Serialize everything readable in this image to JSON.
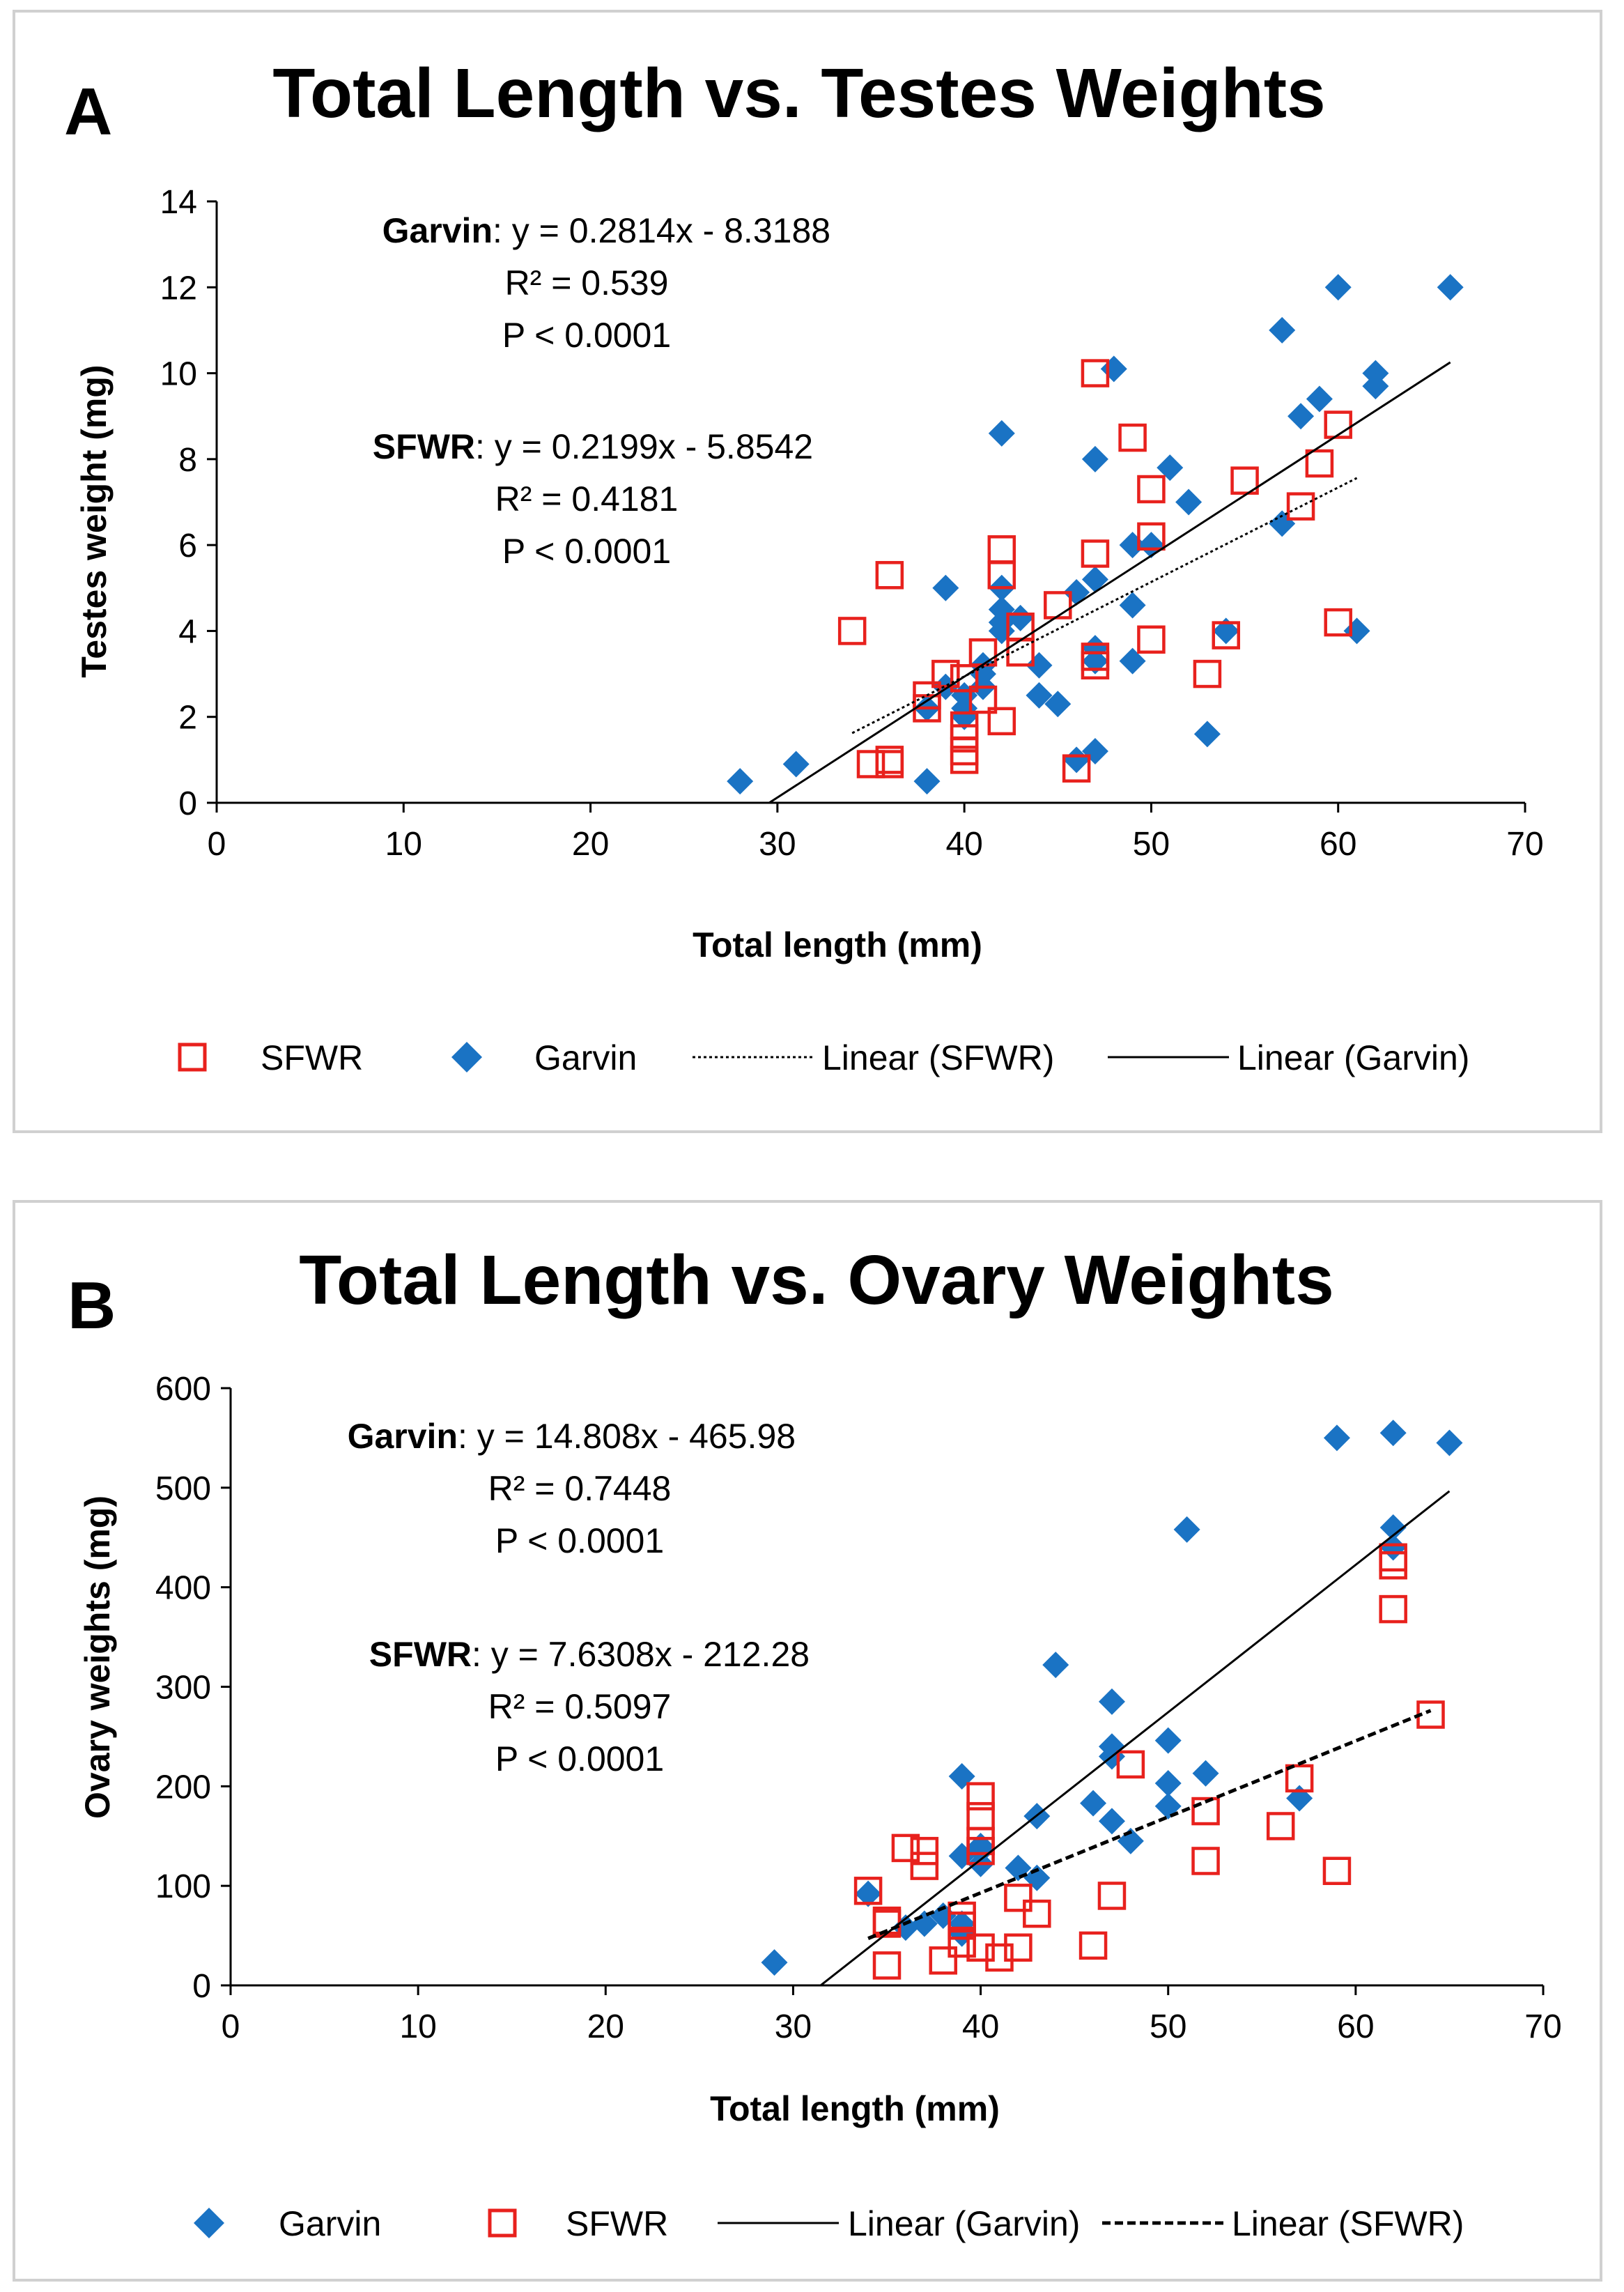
{
  "chart_data": [
    {
      "type": "scatter",
      "panel_label": "A",
      "title": "Total Length vs. Testes Weights",
      "xlabel": "Total length (mm)",
      "ylabel": "Testes weight (mg)",
      "xlim": [
        0,
        70
      ],
      "ylim": [
        0,
        14
      ],
      "xticks": [
        0,
        10,
        20,
        30,
        40,
        50,
        60,
        70
      ],
      "yticks": [
        0,
        2,
        4,
        6,
        8,
        10,
        12,
        14
      ],
      "grid": false,
      "legend": "bottom",
      "legend_entries": [
        {
          "label": "SFWR",
          "kind": "sfwr-marker"
        },
        {
          "label": "Garvin",
          "kind": "garvin-marker"
        },
        {
          "label": "Linear (SFWR)",
          "kind": "dotted-line"
        },
        {
          "label": "Linear (Garvin)",
          "kind": "solid-line"
        }
      ],
      "annotations": [
        {
          "site": "Garvin",
          "equation": ": y = 0.2814x - 8.3188",
          "r2": "R² = 0.539",
          "p": "P < 0.0001"
        },
        {
          "site": "SFWR",
          "equation": ": y = 0.2199x - 5.8542",
          "r2": "R² = 0.4181",
          "p": "P < 0.0001"
        }
      ],
      "series": [
        {
          "name": "Garvin",
          "marker": "diamond",
          "color": "#1a73c4",
          "points": [
            [
              28,
              0.5
            ],
            [
              31,
              0.9
            ],
            [
              38,
              0.5
            ],
            [
              38,
              2.2
            ],
            [
              39,
              5.0
            ],
            [
              39,
              2.7
            ],
            [
              40,
              2.0
            ],
            [
              40,
              2.5
            ],
            [
              40,
              2.2
            ],
            [
              41,
              2.7
            ],
            [
              41,
              3.0
            ],
            [
              41,
              3.2
            ],
            [
              42,
              8.6
            ],
            [
              42,
              5.0
            ],
            [
              42,
              4.5
            ],
            [
              42,
              4.2
            ],
            [
              42,
              4.0
            ],
            [
              43,
              4.3
            ],
            [
              44,
              3.2
            ],
            [
              44,
              2.5
            ],
            [
              45,
              2.3
            ],
            [
              46,
              1.0
            ],
            [
              46,
              4.9
            ],
            [
              47,
              5.2
            ],
            [
              47,
              3.6
            ],
            [
              47,
              3.3
            ],
            [
              47,
              1.2
            ],
            [
              47,
              8.0
            ],
            [
              48,
              10.1
            ],
            [
              49,
              6.0
            ],
            [
              49,
              4.6
            ],
            [
              49,
              3.3
            ],
            [
              50,
              6.0
            ],
            [
              51,
              7.8
            ],
            [
              52,
              7.0
            ],
            [
              53,
              1.6
            ],
            [
              54,
              4.0
            ],
            [
              57,
              11.0
            ],
            [
              57,
              6.5
            ],
            [
              58,
              9.0
            ],
            [
              59,
              9.4
            ],
            [
              60,
              12.0
            ],
            [
              61,
              4.0
            ],
            [
              62,
              10.0
            ],
            [
              62,
              9.7
            ],
            [
              66,
              12.0
            ]
          ]
        },
        {
          "name": "SFWR",
          "marker": "square",
          "color": "#e8211d",
          "points": [
            [
              34,
              4.0
            ],
            [
              35,
              0.9
            ],
            [
              36,
              5.3
            ],
            [
              36,
              1.0
            ],
            [
              36,
              0.9
            ],
            [
              38,
              2.5
            ],
            [
              38,
              2.2
            ],
            [
              39,
              3.0
            ],
            [
              40,
              2.9
            ],
            [
              40,
              1.8
            ],
            [
              40,
              1.5
            ],
            [
              40,
              1.2
            ],
            [
              40,
              1.0
            ],
            [
              41,
              3.5
            ],
            [
              41,
              2.4
            ],
            [
              42,
              5.9
            ],
            [
              42,
              5.3
            ],
            [
              42,
              1.9
            ],
            [
              43,
              3.5
            ],
            [
              43,
              4.1
            ],
            [
              45,
              4.6
            ],
            [
              46,
              0.8
            ],
            [
              47,
              10.0
            ],
            [
              47,
              5.8
            ],
            [
              47,
              3.4
            ],
            [
              47,
              3.2
            ],
            [
              49,
              8.5
            ],
            [
              50,
              7.3
            ],
            [
              50,
              6.2
            ],
            [
              50,
              3.8
            ],
            [
              53,
              3.0
            ],
            [
              54,
              3.9
            ],
            [
              55,
              7.5
            ],
            [
              58,
              6.9
            ],
            [
              59,
              7.9
            ],
            [
              60,
              8.8
            ],
            [
              60,
              4.2
            ]
          ]
        }
      ],
      "trendlines": [
        {
          "name": "Linear (SFWR)",
          "slope": 0.2199,
          "intercept": -5.8542,
          "x_range": [
            34,
            61
          ],
          "style": "dotted"
        },
        {
          "name": "Linear (Garvin)",
          "slope": 0.2814,
          "intercept": -8.3188,
          "x_range": [
            29.56,
            66
          ],
          "style": "solid"
        }
      ]
    },
    {
      "type": "scatter",
      "panel_label": "B",
      "title": "Total Length vs. Ovary Weights",
      "xlabel": "Total length (mm)",
      "ylabel": "Ovary weights (mg)",
      "xlim": [
        0,
        70
      ],
      "ylim": [
        0,
        600
      ],
      "xticks": [
        0,
        10,
        20,
        30,
        40,
        50,
        60,
        70
      ],
      "yticks": [
        0,
        100,
        200,
        300,
        400,
        500,
        600
      ],
      "grid": false,
      "legend": "bottom",
      "legend_entries": [
        {
          "label": "Garvin",
          "kind": "garvin-marker"
        },
        {
          "label": "SFWR",
          "kind": "sfwr-marker"
        },
        {
          "label": "Linear (Garvin)",
          "kind": "solid-line"
        },
        {
          "label": "Linear (SFWR)",
          "kind": "dashed-line"
        }
      ],
      "annotations": [
        {
          "site": "Garvin",
          "equation": ": y = 14.808x - 465.98",
          "r2": "R² = 0.7448",
          "p": "P < 0.0001"
        },
        {
          "site": "SFWR",
          "equation": ": y = 7.6308x - 212.28",
          "r2": "R² = 0.5097",
          "p": "P < 0.0001"
        }
      ],
      "series": [
        {
          "name": "Garvin",
          "marker": "diamond",
          "color": "#1a73c4",
          "points": [
            [
              29,
              23
            ],
            [
              34,
              92
            ],
            [
              36,
              58
            ],
            [
              37,
              62
            ],
            [
              38,
              70
            ],
            [
              39,
              210
            ],
            [
              39,
              130
            ],
            [
              39,
              62
            ],
            [
              39,
              52
            ],
            [
              40,
              140
            ],
            [
              40,
              135
            ],
            [
              40,
              122
            ],
            [
              42,
              118
            ],
            [
              43,
              170
            ],
            [
              43,
              108
            ],
            [
              44,
              322
            ],
            [
              46,
              183
            ],
            [
              47,
              285
            ],
            [
              47,
              240
            ],
            [
              47,
              230
            ],
            [
              47,
              165
            ],
            [
              48,
              145
            ],
            [
              50,
              246
            ],
            [
              50,
              203
            ],
            [
              50,
              180
            ],
            [
              51,
              458
            ],
            [
              52,
              213
            ],
            [
              57,
              188
            ],
            [
              59,
              550
            ],
            [
              62,
              555
            ],
            [
              62,
              460
            ],
            [
              62,
              440
            ],
            [
              65,
              545
            ]
          ]
        },
        {
          "name": "SFWR",
          "marker": "square",
          "color": "#e8211d",
          "points": [
            [
              34,
              95
            ],
            [
              35,
              65
            ],
            [
              35,
              62
            ],
            [
              35,
              20
            ],
            [
              36,
              138
            ],
            [
              37,
              135
            ],
            [
              37,
              120
            ],
            [
              38,
              25
            ],
            [
              39,
              70
            ],
            [
              39,
              60
            ],
            [
              39,
              42
            ],
            [
              40,
              190
            ],
            [
              40,
              170
            ],
            [
              40,
              145
            ],
            [
              40,
              135
            ],
            [
              40,
              38
            ],
            [
              41,
              28
            ],
            [
              42,
              88
            ],
            [
              42,
              38
            ],
            [
              43,
              72
            ],
            [
              46,
              40
            ],
            [
              47,
              90
            ],
            [
              48,
              222
            ],
            [
              52,
              175
            ],
            [
              52,
              125
            ],
            [
              56,
              160
            ],
            [
              57,
              208
            ],
            [
              59,
              115
            ],
            [
              62,
              430
            ],
            [
              62,
              422
            ],
            [
              62,
              378
            ],
            [
              64,
              272
            ]
          ]
        }
      ],
      "trendlines": [
        {
          "name": "Linear (Garvin)",
          "slope": 14.808,
          "intercept": -465.98,
          "x_range": [
            31.47,
            65
          ],
          "style": "solid"
        },
        {
          "name": "Linear (SFWR)",
          "slope": 7.6308,
          "intercept": -212.28,
          "x_range": [
            34,
            64
          ],
          "style": "dashed"
        }
      ]
    }
  ]
}
